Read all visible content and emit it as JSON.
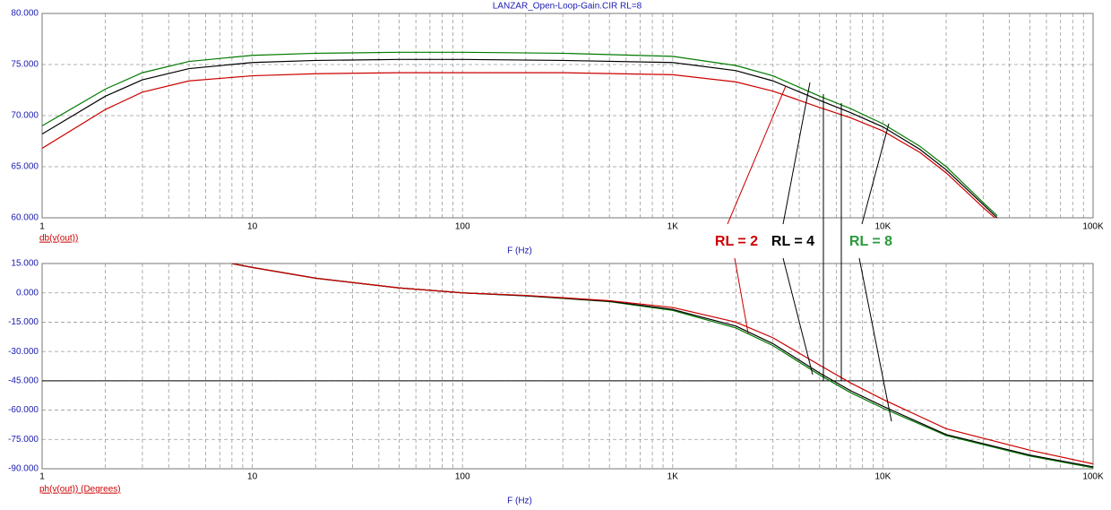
{
  "title": "LANZAR_Open-Loop-Gain.CIR RL=8",
  "chart_data": [
    {
      "type": "line",
      "log_x": true,
      "grid": true,
      "ylabel": "db(v(out))",
      "xlabel": "F (Hz)",
      "xlim": [
        1,
        100000
      ],
      "xticks": [
        1,
        10,
        100,
        {
          "value": 1000,
          "label": "1K"
        },
        {
          "value": 10000,
          "label": "10K"
        },
        {
          "value": 100000,
          "label": "100K"
        }
      ],
      "ylim": [
        60,
        80
      ],
      "yticks": [
        {
          "value": 80,
          "label": "80.000"
        },
        {
          "value": 75,
          "label": "75.000"
        },
        {
          "value": 70,
          "label": "70.000"
        },
        {
          "value": 65,
          "label": "65.000"
        },
        {
          "value": 60,
          "label": "60.000"
        }
      ],
      "x": [
        1,
        2,
        3,
        5,
        10,
        20,
        50,
        100,
        300,
        1000,
        2000,
        3000,
        5000,
        7000,
        10000,
        15000,
        20000,
        30000,
        35000
      ],
      "series": [
        {
          "name": "RL = 8",
          "color": "#007a00",
          "values": [
            69,
            72.6,
            74.2,
            75.3,
            75.9,
            76.1,
            76.2,
            76.2,
            76.1,
            75.8,
            74.9,
            73.9,
            71.9,
            70.7,
            69.2,
            67,
            65,
            61.5,
            60.2
          ]
        },
        {
          "name": "RL = 4",
          "color": "#000000",
          "values": [
            68.2,
            71.9,
            73.5,
            74.6,
            75.2,
            75.4,
            75.5,
            75.5,
            75.4,
            75.2,
            74.4,
            73.4,
            71.5,
            70.3,
            68.9,
            66.7,
            64.7,
            61.3,
            60
          ]
        },
        {
          "name": "RL = 2",
          "color": "#cc0000",
          "values": [
            66.8,
            70.6,
            72.3,
            73.4,
            73.9,
            74.1,
            74.2,
            74.2,
            74.2,
            74,
            73.3,
            72.4,
            70.8,
            69.8,
            68.5,
            66.4,
            64.4,
            61,
            59.8
          ]
        }
      ]
    },
    {
      "type": "line",
      "log_x": true,
      "grid": true,
      "ylabel": "ph(v(out)) (Degrees)",
      "xlabel": "F (Hz)",
      "xlim": [
        1,
        100000
      ],
      "xticks": [
        1,
        10,
        100,
        {
          "value": 1000,
          "label": "1K"
        },
        {
          "value": 10000,
          "label": "10K"
        },
        {
          "value": 100000,
          "label": "100K"
        }
      ],
      "ylim": [
        -90,
        15
      ],
      "yticks": [
        {
          "value": 15,
          "label": "15.000"
        },
        {
          "value": 0,
          "label": "0.000"
        },
        {
          "value": -15,
          "label": "-15.000"
        },
        {
          "value": -30,
          "label": "-30.000"
        },
        {
          "value": -45,
          "label": "-45.000"
        },
        {
          "value": -60,
          "label": "-60.000"
        },
        {
          "value": -75,
          "label": "-75.000"
        },
        {
          "value": -90,
          "label": "-90.000"
        }
      ],
      "reference_line": -45,
      "x": [
        8,
        10,
        20,
        50,
        100,
        200,
        500,
        1000,
        2000,
        3000,
        5000,
        7000,
        10000,
        20000,
        50000,
        100000
      ],
      "series": [
        {
          "name": "RL = 8",
          "color": "#007a00",
          "values": [
            15,
            13,
            7.5,
            2.5,
            0,
            -1.5,
            -4.5,
            -9,
            -18,
            -27,
            -42,
            -51,
            -59,
            -73,
            -83.5,
            -89.5
          ]
        },
        {
          "name": "RL = 4",
          "color": "#000000",
          "values": [
            15,
            13,
            7.5,
            2.5,
            0,
            -1.5,
            -4.3,
            -8.5,
            -17,
            -26,
            -41,
            -50,
            -58,
            -72.5,
            -83,
            -89
          ]
        },
        {
          "name": "RL = 2",
          "color": "#cc0000",
          "values": [
            15,
            13,
            7.5,
            2.5,
            0,
            -1.3,
            -4,
            -7.5,
            -15,
            -23,
            -37,
            -46,
            -54.5,
            -69.5,
            -80.5,
            -87.5
          ]
        }
      ]
    }
  ]
}
